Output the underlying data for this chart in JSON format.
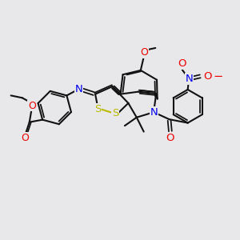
{
  "bg_color": "#e8e8ea",
  "bond_color": "#111111",
  "S_color": "#bbbb00",
  "N_color": "#0000ee",
  "O_color": "#ee0000",
  "lw": 1.5,
  "fs": 7.5,
  "ring_r": 0.68,
  "xlim": [
    0,
    10
  ],
  "ylim": [
    0,
    10
  ]
}
